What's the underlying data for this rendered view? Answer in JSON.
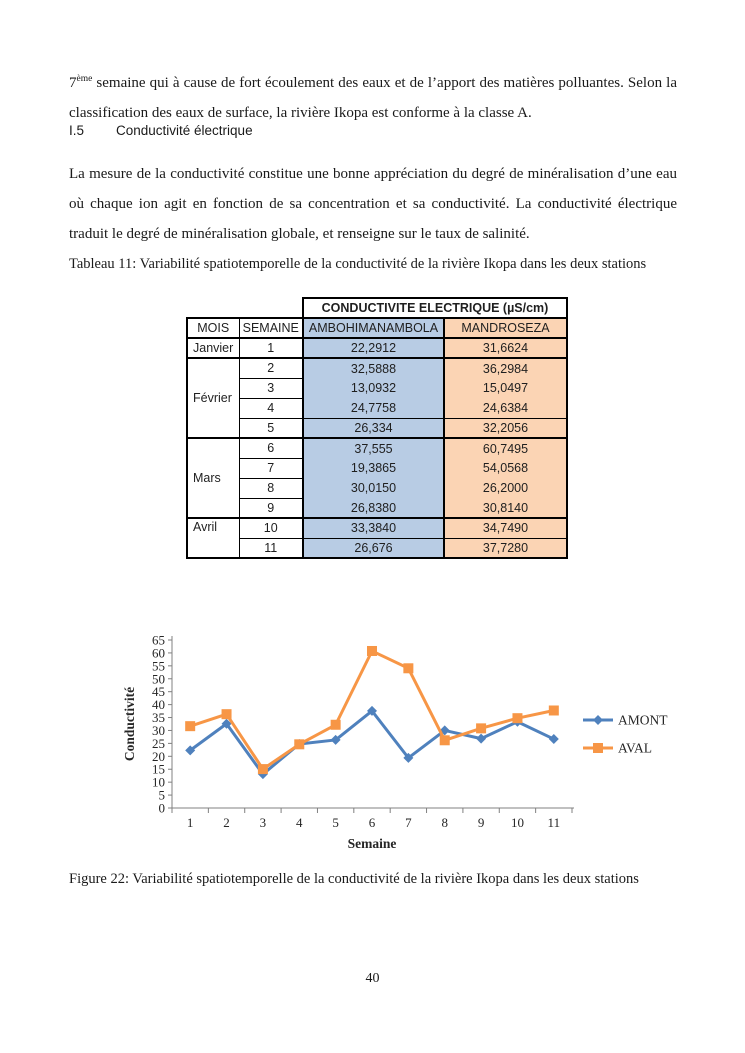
{
  "doc": {
    "p1": {
      "lead": "7",
      "sup": "ème",
      "rest": " semaine qui à cause de fort écoulement des eaux et de l’apport des matières polluantes. Selon la classification  des eaux de surface, la rivière Ikopa est conforme à la classe A."
    },
    "section": {
      "number": "I.5",
      "title": "Conductivité électrique"
    },
    "p2": "La mesure de la conductivité constitue une bonne appréciation du degré de minéralisation d’une eau où chaque ion agit en fonction de sa concentration et sa conductivité. La conductivité électrique traduit le degré de minéralisation globale, et renseigne sur le taux de salinité.",
    "table_caption": "Tableau 11: Variabilité spatiotemporelle de la conductivité de la rivière Ikopa dans les deux stations",
    "figure_caption": "Figure 22: Variabilité spatiotemporelle de la conductivité de la rivière Ikopa dans les deux stations",
    "page_number": "40"
  },
  "table": {
    "span_header": "CONDUCTIVITE ELECTRIQUE (µS/cm)",
    "col_headers": [
      "MOIS",
      "SEMAINE",
      "AMBOHIMANAMBOLA",
      "MANDROSEZA"
    ],
    "colors": {
      "station1_fill": "#B8CCE4",
      "station2_fill": "#FBD4B4"
    },
    "rows": [
      {
        "month": "Janvier",
        "rowspan": 1,
        "week": "1",
        "station1": "22,2912",
        "station2": "31,6624",
        "group_start": true
      },
      {
        "month": "Février",
        "rowspan": 4,
        "week": "2",
        "station1": "32,5888",
        "station2": "36,2984",
        "group_start": true
      },
      {
        "week": "3",
        "station1": "13,0932",
        "station2": "15,0497"
      },
      {
        "week": "4",
        "station1": "24,7758",
        "station2": "24,6384"
      },
      {
        "week": "5",
        "station1": "26,334",
        "station2": "32,2056",
        "sep": true
      },
      {
        "month": "Mars",
        "rowspan": 4,
        "week": "6",
        "station1": "37,555",
        "station2": "60,7495",
        "group_start": true
      },
      {
        "week": "7",
        "station1": "19,3865",
        "station2": "54,0568"
      },
      {
        "week": "8",
        "station1": "30,0150",
        "station2": "26,2000"
      },
      {
        "week": "9",
        "station1": "26,8380",
        "station2": "30,8140"
      },
      {
        "month": "Avril",
        "rowspan": 2,
        "month_align": "top",
        "week": "10",
        "station1": "33,3840",
        "station2": "34,7490",
        "group_start": true
      },
      {
        "week": "11",
        "station1": "26,676",
        "station2": "37,7280",
        "sep": true
      }
    ]
  },
  "chart_data": {
    "type": "line",
    "x": [
      1,
      2,
      3,
      4,
      5,
      6,
      7,
      8,
      9,
      10,
      11
    ],
    "series": [
      {
        "name": "AMONT",
        "color": "#4F81BD",
        "marker": "diamond",
        "values": [
          22.2912,
          32.5888,
          13.0932,
          24.7758,
          26.334,
          37.555,
          19.3865,
          30.015,
          26.838,
          33.384,
          26.676
        ]
      },
      {
        "name": "AVAL",
        "color": "#F79646",
        "marker": "square",
        "values": [
          31.6624,
          36.2984,
          15.0497,
          24.6384,
          32.2056,
          60.7495,
          54.0568,
          26.2,
          30.814,
          34.749,
          37.728
        ]
      }
    ],
    "xlabel": "Semaine",
    "ylabel": "Conductivité",
    "ylim": [
      0,
      65
    ],
    "ytick_step": 5,
    "grid": false,
    "legend_position": "right",
    "axis_color": "#808080",
    "text_color": "#262626"
  }
}
